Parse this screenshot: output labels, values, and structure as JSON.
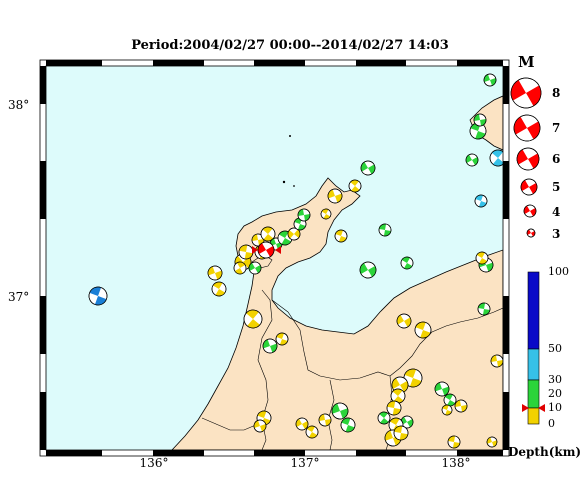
{
  "title": "Period:2004/02/27 00:00--2014/02/27 14:03",
  "lat_labels": [
    "38°",
    "37°"
  ],
  "lon_labels": [
    "136°",
    "137°",
    "138°"
  ],
  "magnitude": {
    "header": "M",
    "levels": [
      "8",
      "7",
      "6",
      "5",
      "4",
      "3"
    ]
  },
  "depth_scale": {
    "title": "Depth(km)",
    "ticks": [
      "100",
      "50",
      "30",
      "20",
      "10",
      "0"
    ],
    "colors": [
      "#f2d200",
      "#2bd43a",
      "#36c1e8",
      "#0a0ac8"
    ]
  },
  "colors": {
    "sea": "#ddfbfb",
    "land": "#fbe3c3",
    "mechanism_red": "#ff0000"
  }
}
